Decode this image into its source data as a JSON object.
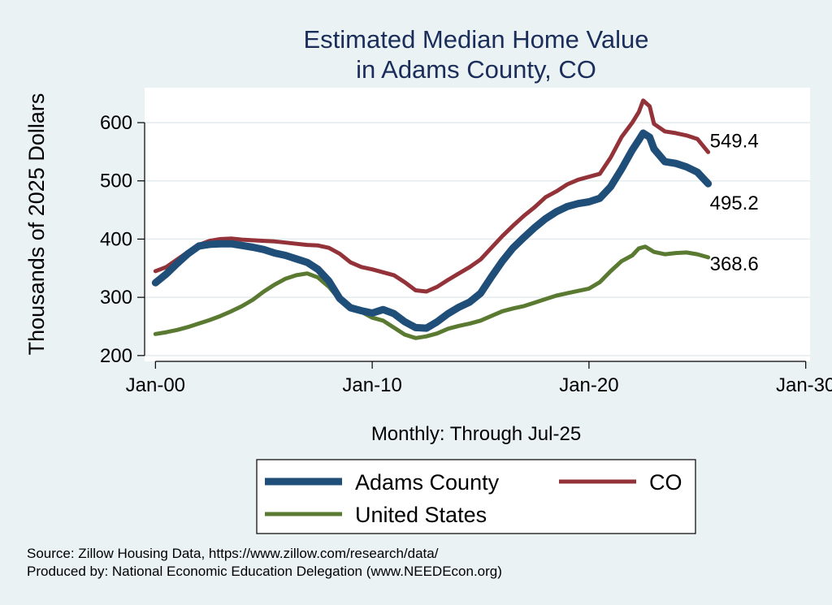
{
  "chart_data": {
    "type": "line",
    "title": [
      "Estimated Median Home Value",
      "in Adams County, CO"
    ],
    "ylabel": "Thousands of 2025 Dollars",
    "xlabel": "Monthly: Through Jul-25",
    "ylim": [
      190,
      660
    ],
    "xlim": [
      1999.5,
      2030.2
    ],
    "yticks": [
      200,
      300,
      400,
      500,
      600
    ],
    "xticks": [
      {
        "value": 2000,
        "label": "Jan-00"
      },
      {
        "value": 2010,
        "label": "Jan-10"
      },
      {
        "value": 2020,
        "label": "Jan-20"
      },
      {
        "value": 2030,
        "label": "Jan-30"
      }
    ],
    "grid": true,
    "series": [
      {
        "name": "CO",
        "color": "#933339",
        "end_label": "549.4",
        "points": [
          [
            2000.0,
            345
          ],
          [
            2000.5,
            352
          ],
          [
            2001.0,
            365
          ],
          [
            2001.5,
            378
          ],
          [
            2002.0,
            390
          ],
          [
            2002.5,
            397
          ],
          [
            2003.0,
            400
          ],
          [
            2003.5,
            401
          ],
          [
            2004.0,
            399
          ],
          [
            2004.5,
            398
          ],
          [
            2005.0,
            397
          ],
          [
            2005.5,
            396
          ],
          [
            2006.0,
            394
          ],
          [
            2006.5,
            392
          ],
          [
            2007.0,
            390
          ],
          [
            2007.5,
            389
          ],
          [
            2008.0,
            385
          ],
          [
            2008.5,
            375
          ],
          [
            2009.0,
            360
          ],
          [
            2009.5,
            352
          ],
          [
            2010.0,
            348
          ],
          [
            2010.5,
            343
          ],
          [
            2011.0,
            338
          ],
          [
            2011.5,
            326
          ],
          [
            2012.0,
            312
          ],
          [
            2012.5,
            310
          ],
          [
            2013.0,
            318
          ],
          [
            2013.5,
            330
          ],
          [
            2014.0,
            341
          ],
          [
            2014.5,
            352
          ],
          [
            2015.0,
            365
          ],
          [
            2015.5,
            385
          ],
          [
            2016.0,
            405
          ],
          [
            2016.5,
            423
          ],
          [
            2017.0,
            440
          ],
          [
            2017.5,
            455
          ],
          [
            2018.0,
            472
          ],
          [
            2018.5,
            482
          ],
          [
            2019.0,
            494
          ],
          [
            2019.5,
            502
          ],
          [
            2020.0,
            507
          ],
          [
            2020.5,
            512
          ],
          [
            2021.0,
            540
          ],
          [
            2021.5,
            575
          ],
          [
            2022.0,
            600
          ],
          [
            2022.3,
            618
          ],
          [
            2022.5,
            638
          ],
          [
            2022.8,
            628
          ],
          [
            2023.0,
            598
          ],
          [
            2023.5,
            585
          ],
          [
            2024.0,
            582
          ],
          [
            2024.5,
            578
          ],
          [
            2025.0,
            572
          ],
          [
            2025.5,
            549.4
          ]
        ]
      },
      {
        "name": "United States",
        "color": "#5a7a31",
        "end_label": "368.6",
        "points": [
          [
            2000.0,
            237
          ],
          [
            2000.5,
            240
          ],
          [
            2001.0,
            244
          ],
          [
            2001.5,
            249
          ],
          [
            2002.0,
            255
          ],
          [
            2002.5,
            261
          ],
          [
            2003.0,
            268
          ],
          [
            2003.5,
            276
          ],
          [
            2004.0,
            285
          ],
          [
            2004.5,
            296
          ],
          [
            2005.0,
            310
          ],
          [
            2005.5,
            322
          ],
          [
            2006.0,
            332
          ],
          [
            2006.5,
            338
          ],
          [
            2007.0,
            341
          ],
          [
            2007.5,
            334
          ],
          [
            2008.0,
            318
          ],
          [
            2008.5,
            296
          ],
          [
            2009.0,
            285
          ],
          [
            2009.5,
            275
          ],
          [
            2010.0,
            265
          ],
          [
            2010.5,
            260
          ],
          [
            2011.0,
            248
          ],
          [
            2011.5,
            236
          ],
          [
            2012.0,
            230
          ],
          [
            2012.5,
            233
          ],
          [
            2013.0,
            238
          ],
          [
            2013.5,
            246
          ],
          [
            2014.0,
            251
          ],
          [
            2014.5,
            255
          ],
          [
            2015.0,
            260
          ],
          [
            2015.5,
            268
          ],
          [
            2016.0,
            276
          ],
          [
            2016.5,
            281
          ],
          [
            2017.0,
            285
          ],
          [
            2017.5,
            291
          ],
          [
            2018.0,
            297
          ],
          [
            2018.5,
            303
          ],
          [
            2019.0,
            307
          ],
          [
            2019.5,
            311
          ],
          [
            2020.0,
            315
          ],
          [
            2020.5,
            326
          ],
          [
            2021.0,
            345
          ],
          [
            2021.5,
            362
          ],
          [
            2022.0,
            372
          ],
          [
            2022.3,
            384
          ],
          [
            2022.6,
            387
          ],
          [
            2023.0,
            378
          ],
          [
            2023.5,
            374
          ],
          [
            2024.0,
            376
          ],
          [
            2024.5,
            377
          ],
          [
            2025.0,
            374
          ],
          [
            2025.5,
            368.6
          ]
        ]
      },
      {
        "name": "Adams County",
        "color": "#1f4e79",
        "end_label": "495.2",
        "points": [
          [
            2000.0,
            325
          ],
          [
            2000.5,
            340
          ],
          [
            2001.0,
            358
          ],
          [
            2001.5,
            375
          ],
          [
            2002.0,
            388
          ],
          [
            2002.5,
            391
          ],
          [
            2003.0,
            392
          ],
          [
            2003.5,
            392
          ],
          [
            2004.0,
            389
          ],
          [
            2004.5,
            386
          ],
          [
            2005.0,
            382
          ],
          [
            2005.5,
            376
          ],
          [
            2006.0,
            372
          ],
          [
            2006.5,
            366
          ],
          [
            2007.0,
            360
          ],
          [
            2007.5,
            348
          ],
          [
            2008.0,
            328
          ],
          [
            2008.5,
            298
          ],
          [
            2009.0,
            282
          ],
          [
            2009.5,
            277
          ],
          [
            2010.0,
            273
          ],
          [
            2010.5,
            279
          ],
          [
            2011.0,
            272
          ],
          [
            2011.5,
            258
          ],
          [
            2012.0,
            248
          ],
          [
            2012.5,
            247
          ],
          [
            2013.0,
            258
          ],
          [
            2013.5,
            272
          ],
          [
            2014.0,
            283
          ],
          [
            2014.5,
            292
          ],
          [
            2015.0,
            307
          ],
          [
            2015.5,
            335
          ],
          [
            2016.0,
            362
          ],
          [
            2016.5,
            385
          ],
          [
            2017.0,
            403
          ],
          [
            2017.5,
            420
          ],
          [
            2018.0,
            435
          ],
          [
            2018.5,
            447
          ],
          [
            2019.0,
            456
          ],
          [
            2019.5,
            461
          ],
          [
            2020.0,
            464
          ],
          [
            2020.5,
            470
          ],
          [
            2021.0,
            490
          ],
          [
            2021.5,
            520
          ],
          [
            2022.0,
            553
          ],
          [
            2022.3,
            570
          ],
          [
            2022.5,
            582
          ],
          [
            2022.8,
            575
          ],
          [
            2023.0,
            555
          ],
          [
            2023.5,
            533
          ],
          [
            2024.0,
            530
          ],
          [
            2024.5,
            524
          ],
          [
            2025.0,
            515
          ],
          [
            2025.5,
            495.2
          ]
        ]
      }
    ],
    "legend": {
      "items": [
        {
          "label": "Adams County",
          "color": "#1f4e79",
          "weight": "thick"
        },
        {
          "label": "CO",
          "color": "#933339",
          "weight": "medium"
        },
        {
          "label": "United States",
          "color": "#5a7a31",
          "weight": "medium"
        }
      ],
      "placement": "bottom"
    },
    "notes": [
      "Source: Zillow Housing Data, https://www.zillow.com/research/data/",
      "Produced by: National Economic Education Delegation (www.NEEDEcon.org)"
    ]
  }
}
